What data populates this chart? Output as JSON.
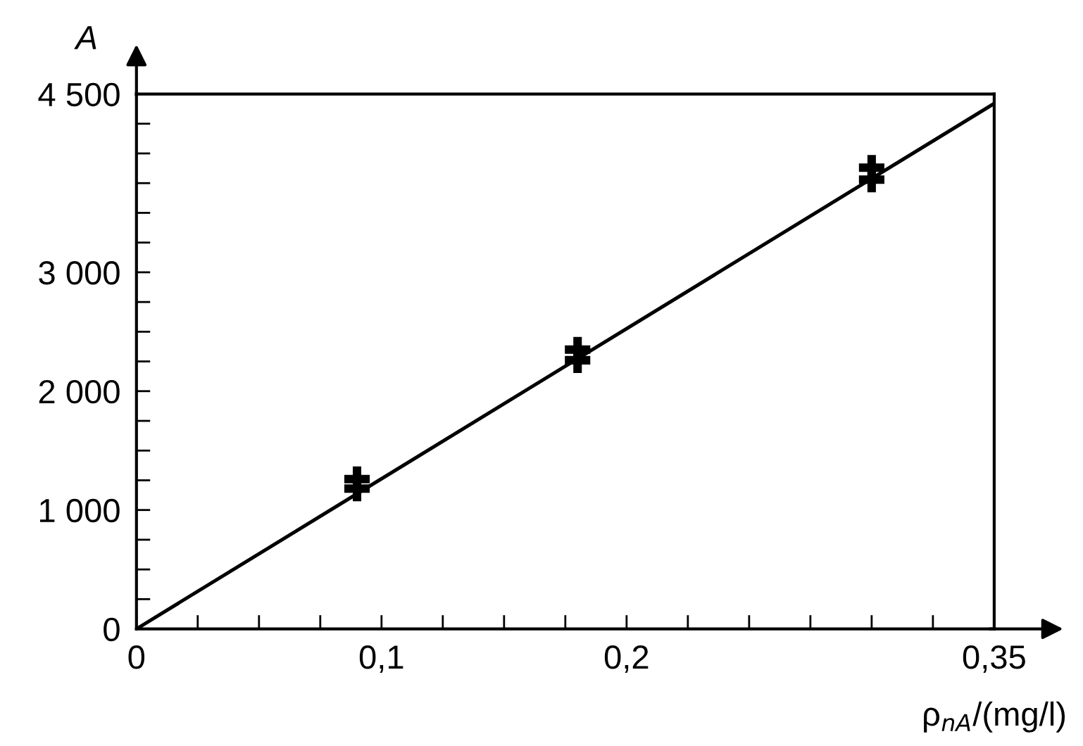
{
  "chart_data": {
    "type": "scatter",
    "xlabel": "ρ$_{nA}$/(mg/l)",
    "ylabel": "A",
    "xlim": [
      0,
      0.35
    ],
    "ylim": [
      0,
      4500
    ],
    "xticks": [
      0,
      {
        "value": 0.025,
        "label": null
      },
      {
        "value": 0.05,
        "label": null
      },
      {
        "value": 0.075,
        "label": null
      },
      {
        "value": 0.1,
        "label": "0,1"
      },
      {
        "value": 0.125,
        "label": null
      },
      {
        "value": 0.15,
        "label": null
      },
      {
        "value": 0.175,
        "label": null
      },
      {
        "value": 0.2,
        "label": "0,2"
      },
      {
        "value": 0.225,
        "label": null
      },
      {
        "value": 0.25,
        "label": null
      },
      {
        "value": 0.275,
        "label": null
      },
      {
        "value": 0.3,
        "label": null
      },
      {
        "value": 0.325,
        "label": null
      },
      {
        "value": 0.35,
        "label": "0,35"
      }
    ],
    "yticks": [
      0,
      {
        "value": 250,
        "label": null
      },
      {
        "value": 500,
        "label": null
      },
      {
        "value": 750,
        "label": null
      },
      {
        "value": 1000,
        "label": "1 000"
      },
      {
        "value": 1250,
        "label": null
      },
      {
        "value": 1500,
        "label": null
      },
      {
        "value": 1750,
        "label": null
      },
      {
        "value": 2000,
        "label": "2 000"
      },
      {
        "value": 2250,
        "label": null
      },
      {
        "value": 2500,
        "label": null
      },
      {
        "value": 2750,
        "label": null
      },
      {
        "value": 3000,
        "label": "3 000"
      },
      {
        "value": 3250,
        "label": null
      },
      {
        "value": 3500,
        "label": null
      },
      {
        "value": 3750,
        "label": null
      },
      {
        "value": 4000,
        "label": null
      },
      {
        "value": 4250,
        "label": null
      },
      {
        "value": 4500,
        "label": "4 500"
      }
    ],
    "grid": false,
    "marker": "cross",
    "series": [
      {
        "color": "#000000",
        "x": [
          0.09,
          0.09,
          0.18,
          0.18,
          0.3,
          0.3
        ],
        "values": [
          1260,
          1180,
          2350,
          2260,
          3880,
          3780
        ]
      },
      {
        "type": "line",
        "color": "#000000",
        "line_style": "solid",
        "marker": "none",
        "x": [
          0,
          0.35
        ],
        "values": [
          0,
          4420
        ]
      }
    ]
  }
}
